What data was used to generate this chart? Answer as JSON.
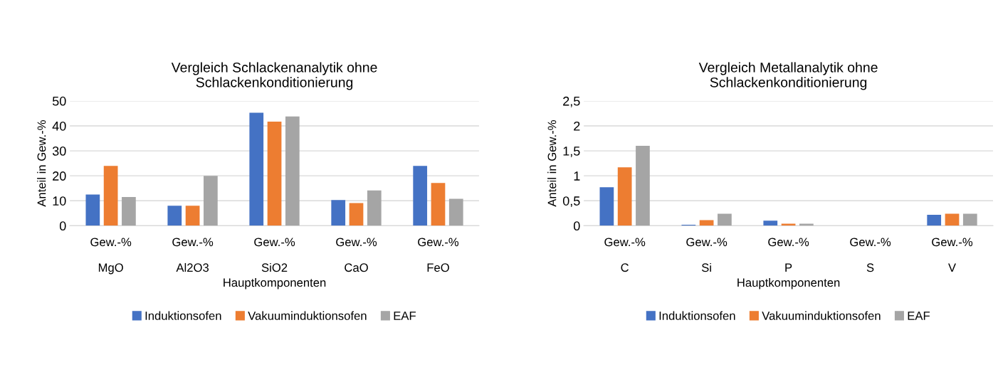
{
  "chart_data": [
    {
      "type": "bar",
      "title": "Vergleich Schlackenanalytik ohne\nSchlackenkonditionierung",
      "xlabel": "Hauptkomponenten",
      "ylabel": "Anteil in Gew.-%",
      "categories": [
        "Gew.-%\n\nMgO",
        "Gew.-%\n\nAl2O3",
        "Gew.-%\n\nSiO2",
        "Gew.-%\n\nCaO",
        "Gew.-%\n\nFeO"
      ],
      "series": [
        {
          "name": "Induktionsofen",
          "color": "#4472c4",
          "values": [
            12.5,
            8,
            45.3,
            10.3,
            24
          ]
        },
        {
          "name": "Vakuuminduktionsofen",
          "color": "#ed7d31",
          "values": [
            24,
            8,
            41.7,
            9.1,
            17.1
          ]
        },
        {
          "name": "EAF",
          "color": "#a5a5a5",
          "values": [
            11.5,
            20,
            43.8,
            14.1,
            10.8
          ]
        }
      ],
      "ylim": [
        0,
        50
      ],
      "yticks": [
        0,
        10,
        20,
        30,
        40,
        50
      ],
      "grid": "y",
      "legend": "bottom"
    },
    {
      "type": "bar",
      "title": "Vergleich Metallanalytik ohne\nSchlackenkonditionierung",
      "xlabel": "Hauptkomponenten",
      "ylabel": "Anteil in Gew.-%",
      "categories": [
        "Gew.-%\n\nC",
        "Gew.-%\n\nSi",
        "Gew.-%\n\nP",
        "Gew.-%\n\nS",
        "Gew.-%\n\nV"
      ],
      "series": [
        {
          "name": "Induktionsofen",
          "color": "#4472c4",
          "values": [
            0.77,
            0.02,
            0.1,
            0,
            0.22
          ]
        },
        {
          "name": "Vakuuminduktionsofen",
          "color": "#ed7d31",
          "values": [
            1.17,
            0.11,
            0.04,
            0,
            0.24
          ]
        },
        {
          "name": "EAF",
          "color": "#a5a5a5",
          "values": [
            1.6,
            0.24,
            0.04,
            0,
            0.24
          ]
        }
      ],
      "ylim": [
        0,
        2.5
      ],
      "yticks": [
        0,
        {
          "value": 0.5,
          "label": "0,5"
        },
        1,
        {
          "value": 1.5,
          "label": "1,5"
        },
        2,
        {
          "value": 2.5,
          "label": "2,5"
        }
      ],
      "grid": "y",
      "legend": "bottom"
    }
  ]
}
